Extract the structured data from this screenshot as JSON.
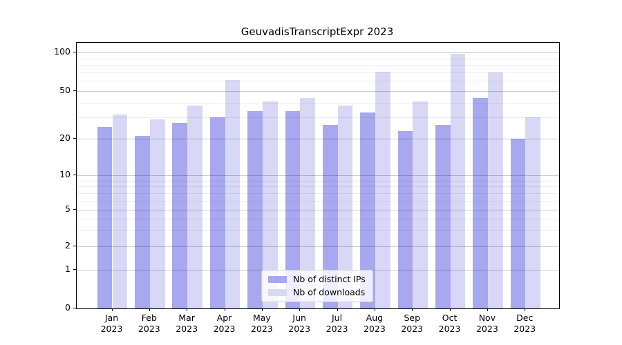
{
  "chart_data": {
    "type": "bar",
    "title": "GeuvadisTranscriptExpr 2023",
    "categories": [
      "Jan",
      "Feb",
      "Mar",
      "Apr",
      "May",
      "Jun",
      "Jul",
      "Aug",
      "Sep",
      "Oct",
      "Nov",
      "Dec"
    ],
    "x_year_label": "2023",
    "series": [
      {
        "name": "Nb of distinct IPs",
        "color": "#a8a8f0",
        "values": [
          25,
          21,
          27,
          30,
          34,
          34,
          26,
          33,
          23,
          26,
          44,
          20
        ]
      },
      {
        "name": "Nb of downloads",
        "color": "#d8d8f6",
        "values": [
          32,
          29,
          38,
          61,
          41,
          44,
          38,
          71,
          41,
          97,
          70,
          30
        ]
      }
    ],
    "xlabel": "",
    "ylabel": "",
    "yscale": "symlog",
    "ylim": [
      0,
      120
    ],
    "yticks": [
      0,
      1,
      2,
      5,
      10,
      20,
      50,
      100
    ],
    "ytick_labels": [
      "0",
      "1",
      "2",
      "5",
      "10",
      "20",
      "50",
      "100"
    ],
    "yticks_minor": [
      3,
      4,
      6,
      7,
      8,
      9,
      30,
      40,
      60,
      70,
      80,
      90
    ],
    "grid": true,
    "legend_position": "lower center inside plot",
    "colors": {
      "grid_major": "#cccccc",
      "grid_minor": "#ececec",
      "spine": "#000000",
      "background": "#ffffff"
    }
  }
}
